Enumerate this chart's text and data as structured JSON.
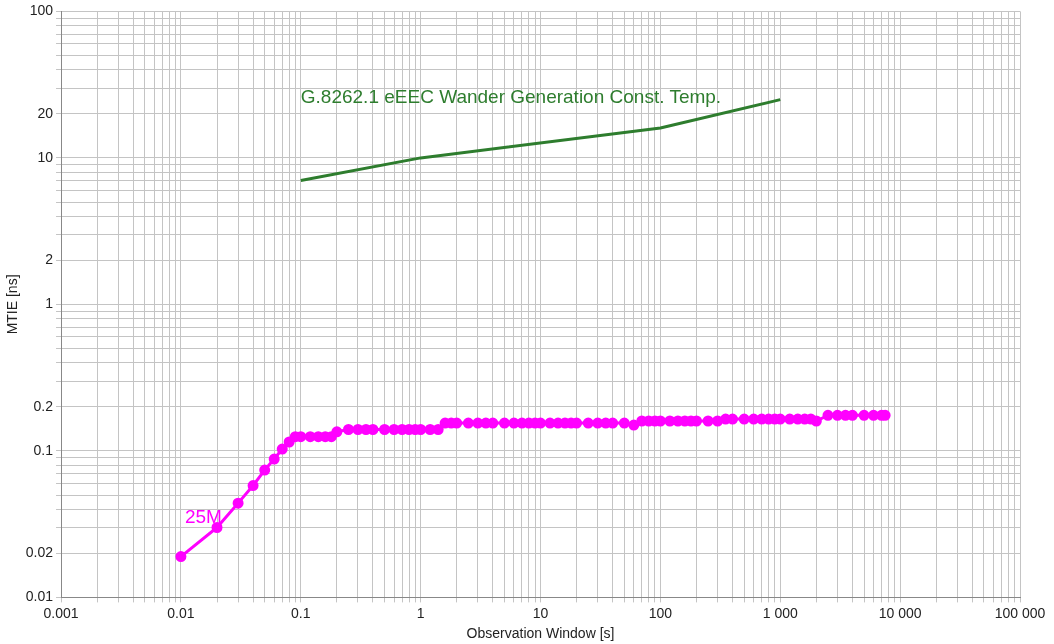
{
  "chart_data": {
    "type": "line",
    "xlabel": "Observation Window [s]",
    "ylabel": "MTIE [ns]",
    "log": "xy",
    "grid": true,
    "legend": false,
    "xlim": [
      0.001,
      100000
    ],
    "ylim": [
      0.01,
      100
    ],
    "xticks": [
      0.001,
      {
        "value": 0.002,
        "label": null
      },
      {
        "value": 0.003,
        "label": null
      },
      {
        "value": 0.004,
        "label": null
      },
      {
        "value": 0.005,
        "label": null
      },
      {
        "value": 0.006,
        "label": null
      },
      {
        "value": 0.007,
        "label": null
      },
      {
        "value": 0.008,
        "label": null
      },
      {
        "value": 0.009,
        "label": null
      },
      0.01,
      {
        "value": 0.02,
        "label": null
      },
      {
        "value": 0.03,
        "label": null
      },
      {
        "value": 0.04,
        "label": null
      },
      {
        "value": 0.05,
        "label": null
      },
      {
        "value": 0.06,
        "label": null
      },
      {
        "value": 0.07,
        "label": null
      },
      {
        "value": 0.08,
        "label": null
      },
      {
        "value": 0.09,
        "label": null
      },
      0.1,
      {
        "value": 0.2,
        "label": null
      },
      {
        "value": 0.3,
        "label": null
      },
      {
        "value": 0.4,
        "label": null
      },
      {
        "value": 0.5,
        "label": null
      },
      {
        "value": 0.6,
        "label": null
      },
      {
        "value": 0.7,
        "label": null
      },
      {
        "value": 0.8,
        "label": null
      },
      {
        "value": 0.9,
        "label": null
      },
      1,
      {
        "value": 2,
        "label": null
      },
      {
        "value": 3,
        "label": null
      },
      {
        "value": 4,
        "label": null
      },
      {
        "value": 5,
        "label": null
      },
      {
        "value": 6,
        "label": null
      },
      {
        "value": 7,
        "label": null
      },
      {
        "value": 8,
        "label": null
      },
      {
        "value": 9,
        "label": null
      },
      10,
      {
        "value": 20,
        "label": null
      },
      {
        "value": 30,
        "label": null
      },
      {
        "value": 40,
        "label": null
      },
      {
        "value": 50,
        "label": null
      },
      {
        "value": 60,
        "label": null
      },
      {
        "value": 70,
        "label": null
      },
      {
        "value": 80,
        "label": null
      },
      {
        "value": 90,
        "label": null
      },
      100,
      {
        "value": 200,
        "label": null
      },
      {
        "value": 300,
        "label": null
      },
      {
        "value": 400,
        "label": null
      },
      {
        "value": 500,
        "label": null
      },
      {
        "value": 600,
        "label": null
      },
      {
        "value": 700,
        "label": null
      },
      {
        "value": 800,
        "label": null
      },
      {
        "value": 900,
        "label": null
      },
      {
        "value": 1000,
        "label": "1 000"
      },
      {
        "value": 2000,
        "label": null
      },
      {
        "value": 3000,
        "label": null
      },
      {
        "value": 4000,
        "label": null
      },
      {
        "value": 5000,
        "label": null
      },
      {
        "value": 6000,
        "label": null
      },
      {
        "value": 7000,
        "label": null
      },
      {
        "value": 8000,
        "label": null
      },
      {
        "value": 9000,
        "label": null
      },
      {
        "value": 10000,
        "label": "10 000"
      },
      {
        "value": 20000,
        "label": null
      },
      {
        "value": 30000,
        "label": null
      },
      {
        "value": 40000,
        "label": null
      },
      {
        "value": 50000,
        "label": null
      },
      {
        "value": 60000,
        "label": null
      },
      {
        "value": 70000,
        "label": null
      },
      {
        "value": 80000,
        "label": null
      },
      {
        "value": 90000,
        "label": null
      },
      {
        "value": 100000,
        "label": "100 000"
      }
    ],
    "yticks": [
      0.01,
      0.02,
      {
        "value": 0.03,
        "label": null
      },
      {
        "value": 0.04,
        "label": null
      },
      {
        "value": 0.05,
        "label": null
      },
      {
        "value": 0.06,
        "label": null
      },
      {
        "value": 0.07,
        "label": null
      },
      {
        "value": 0.08,
        "label": null
      },
      {
        "value": 0.09,
        "label": null
      },
      0.1,
      0.2,
      {
        "value": 0.3,
        "label": null
      },
      {
        "value": 0.4,
        "label": null
      },
      {
        "value": 0.5,
        "label": null
      },
      {
        "value": 0.6,
        "label": null
      },
      {
        "value": 0.7,
        "label": null
      },
      {
        "value": 0.8,
        "label": null
      },
      {
        "value": 0.9,
        "label": null
      },
      1,
      2,
      {
        "value": 3,
        "label": null
      },
      {
        "value": 4,
        "label": null
      },
      {
        "value": 5,
        "label": null
      },
      {
        "value": 6,
        "label": null
      },
      {
        "value": 7,
        "label": null
      },
      {
        "value": 8,
        "label": null
      },
      {
        "value": 9,
        "label": null
      },
      10,
      20,
      {
        "value": 30,
        "label": null
      },
      {
        "value": 40,
        "label": null
      },
      {
        "value": 50,
        "label": null
      },
      {
        "value": 60,
        "label": null
      },
      {
        "value": 70,
        "label": null
      },
      {
        "value": 80,
        "label": null
      },
      {
        "value": 90,
        "label": null
      },
      100
    ],
    "series": [
      {
        "name": "G.8262.1 eEEC Wander Generation Const. Temp.",
        "color": "#2e7d2e",
        "marker": "none",
        "x": [
          0.1,
          1,
          100,
          1000
        ],
        "values": [
          7,
          10,
          16,
          25
        ]
      },
      {
        "name": "25M",
        "color": "#ff00ff",
        "marker": "circle",
        "x": [
          0.01,
          0.02,
          0.03,
          0.04,
          0.05,
          0.06,
          0.07,
          0.08,
          0.09,
          0.1,
          0.12,
          0.14,
          0.16,
          0.18,
          0.2,
          0.25,
          0.3,
          0.35,
          0.4,
          0.5,
          0.6,
          0.7,
          0.8,
          0.9,
          1,
          1.2,
          1.4,
          1.6,
          1.8,
          2,
          2.5,
          3,
          3.5,
          4,
          5,
          6,
          7,
          8,
          9,
          10,
          12,
          14,
          16,
          18,
          20,
          25,
          30,
          35,
          40,
          50,
          60,
          70,
          80,
          90,
          100,
          120,
          140,
          160,
          180,
          200,
          250,
          300,
          350,
          400,
          500,
          600,
          700,
          800,
          900,
          1000,
          1200,
          1400,
          1600,
          1800,
          2000,
          2500,
          3000,
          3500,
          4000,
          5000,
          6000,
          7000,
          7500
        ],
        "values": [
          0.019,
          0.03,
          0.044,
          0.058,
          0.074,
          0.088,
          0.103,
          0.115,
          0.125,
          0.125,
          0.125,
          0.125,
          0.125,
          0.125,
          0.135,
          0.14,
          0.14,
          0.14,
          0.14,
          0.14,
          0.14,
          0.14,
          0.14,
          0.14,
          0.14,
          0.14,
          0.14,
          0.155,
          0.155,
          0.155,
          0.155,
          0.155,
          0.155,
          0.155,
          0.155,
          0.155,
          0.155,
          0.155,
          0.155,
          0.155,
          0.155,
          0.155,
          0.155,
          0.155,
          0.155,
          0.155,
          0.155,
          0.155,
          0.155,
          0.155,
          0.15,
          0.16,
          0.16,
          0.16,
          0.16,
          0.16,
          0.16,
          0.16,
          0.16,
          0.16,
          0.16,
          0.16,
          0.165,
          0.165,
          0.165,
          0.165,
          0.165,
          0.165,
          0.165,
          0.165,
          0.165,
          0.165,
          0.165,
          0.165,
          0.16,
          0.175,
          0.175,
          0.175,
          0.175,
          0.175,
          0.175,
          0.175,
          0.175
        ]
      }
    ]
  }
}
